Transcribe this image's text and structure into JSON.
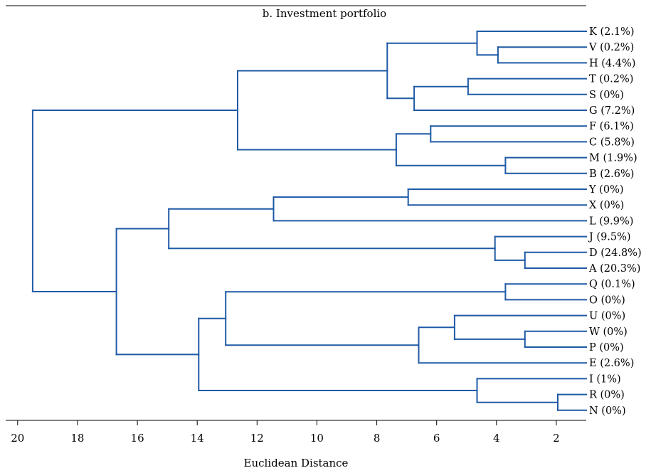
{
  "chart_data": {
    "type": "dendrogram",
    "title": "b. Investment portfolio",
    "xlabel": "Euclidean Distance",
    "x_axis": {
      "reversed": true,
      "range": [
        20.4,
        1.0
      ],
      "ticks": [
        20,
        18,
        16,
        14,
        12,
        10,
        8,
        6,
        4,
        2
      ]
    },
    "line_color": "#1f5aa6",
    "leaves": [
      {
        "id": "K",
        "label": "K (2.1%)",
        "weight_pct": 2.1
      },
      {
        "id": "V",
        "label": "V (0.2%)",
        "weight_pct": 0.2
      },
      {
        "id": "H",
        "label": "H (4.4%)",
        "weight_pct": 4.4
      },
      {
        "id": "T",
        "label": "T (0.2%)",
        "weight_pct": 0.2
      },
      {
        "id": "S",
        "label": "S (0%)",
        "weight_pct": 0
      },
      {
        "id": "G",
        "label": "G (7.2%)",
        "weight_pct": 7.2
      },
      {
        "id": "F",
        "label": "F (6.1%)",
        "weight_pct": 6.1
      },
      {
        "id": "C",
        "label": "C (5.8%)",
        "weight_pct": 5.8
      },
      {
        "id": "M",
        "label": "M (1.9%)",
        "weight_pct": 1.9
      },
      {
        "id": "B",
        "label": "B (2.6%)",
        "weight_pct": 2.6
      },
      {
        "id": "Y",
        "label": "Y (0%)",
        "weight_pct": 0
      },
      {
        "id": "X",
        "label": "X (0%)",
        "weight_pct": 0
      },
      {
        "id": "L",
        "label": "L (9.9%)",
        "weight_pct": 9.9
      },
      {
        "id": "J",
        "label": "J (9.5%)",
        "weight_pct": 9.5
      },
      {
        "id": "D",
        "label": "D (24.8%)",
        "weight_pct": 24.8
      },
      {
        "id": "A",
        "label": "A (20.3%)",
        "weight_pct": 20.3
      },
      {
        "id": "Q",
        "label": "Q (0.1%)",
        "weight_pct": 0.1
      },
      {
        "id": "O",
        "label": "O (0%)",
        "weight_pct": 0
      },
      {
        "id": "U",
        "label": "U (0%)",
        "weight_pct": 0
      },
      {
        "id": "W",
        "label": "W (0%)",
        "weight_pct": 0
      },
      {
        "id": "P",
        "label": "P (0%)",
        "weight_pct": 0
      },
      {
        "id": "E",
        "label": "E (2.6%)",
        "weight_pct": 2.6
      },
      {
        "id": "I",
        "label": "I (1%)",
        "weight_pct": 1
      },
      {
        "id": "R",
        "label": "R (0%)",
        "weight_pct": 0
      },
      {
        "id": "N",
        "label": "N (0%)",
        "weight_pct": 0
      }
    ],
    "merges": [
      {
        "id": "m1",
        "height": 3.95,
        "children": [
          "V",
          "H"
        ]
      },
      {
        "id": "m2",
        "height": 4.65,
        "children": [
          "K",
          "m1"
        ]
      },
      {
        "id": "m3",
        "height": 4.95,
        "children": [
          "T",
          "S"
        ]
      },
      {
        "id": "m4",
        "height": 6.75,
        "children": [
          "m3",
          "G"
        ]
      },
      {
        "id": "m5",
        "height": 7.65,
        "children": [
          "m2",
          "m4"
        ]
      },
      {
        "id": "m6",
        "height": 6.2,
        "children": [
          "F",
          "C"
        ]
      },
      {
        "id": "m7",
        "height": 3.7,
        "children": [
          "M",
          "B"
        ]
      },
      {
        "id": "m8",
        "height": 7.35,
        "children": [
          "m6",
          "m7"
        ]
      },
      {
        "id": "m9",
        "height": 12.65,
        "children": [
          "m5",
          "m8"
        ]
      },
      {
        "id": "m10",
        "height": 6.95,
        "children": [
          "Y",
          "X"
        ]
      },
      {
        "id": "m11",
        "height": 11.45,
        "children": [
          "m10",
          "L"
        ]
      },
      {
        "id": "m12",
        "height": 3.05,
        "children": [
          "D",
          "A"
        ]
      },
      {
        "id": "m13",
        "height": 4.05,
        "children": [
          "J",
          "m12"
        ]
      },
      {
        "id": "m14",
        "height": 14.95,
        "children": [
          "m11",
          "m13"
        ]
      },
      {
        "id": "m15",
        "height": 3.7,
        "children": [
          "Q",
          "O"
        ]
      },
      {
        "id": "m16",
        "height": 3.05,
        "children": [
          "W",
          "P"
        ]
      },
      {
        "id": "m17",
        "height": 5.4,
        "children": [
          "U",
          "m16"
        ]
      },
      {
        "id": "m18",
        "height": 6.6,
        "children": [
          "m17",
          "E"
        ]
      },
      {
        "id": "m19",
        "height": 13.05,
        "children": [
          "m15",
          "m18"
        ]
      },
      {
        "id": "m20",
        "height": 1.95,
        "children": [
          "R",
          "N"
        ]
      },
      {
        "id": "m21",
        "height": 4.65,
        "children": [
          "I",
          "m20"
        ]
      },
      {
        "id": "m22",
        "height": 13.95,
        "children": [
          "m19",
          "m21"
        ]
      },
      {
        "id": "m23",
        "height": 16.7,
        "children": [
          "m14",
          "m22"
        ]
      },
      {
        "id": "m24",
        "height": 19.5,
        "children": [
          "m9",
          "m23"
        ]
      }
    ]
  }
}
